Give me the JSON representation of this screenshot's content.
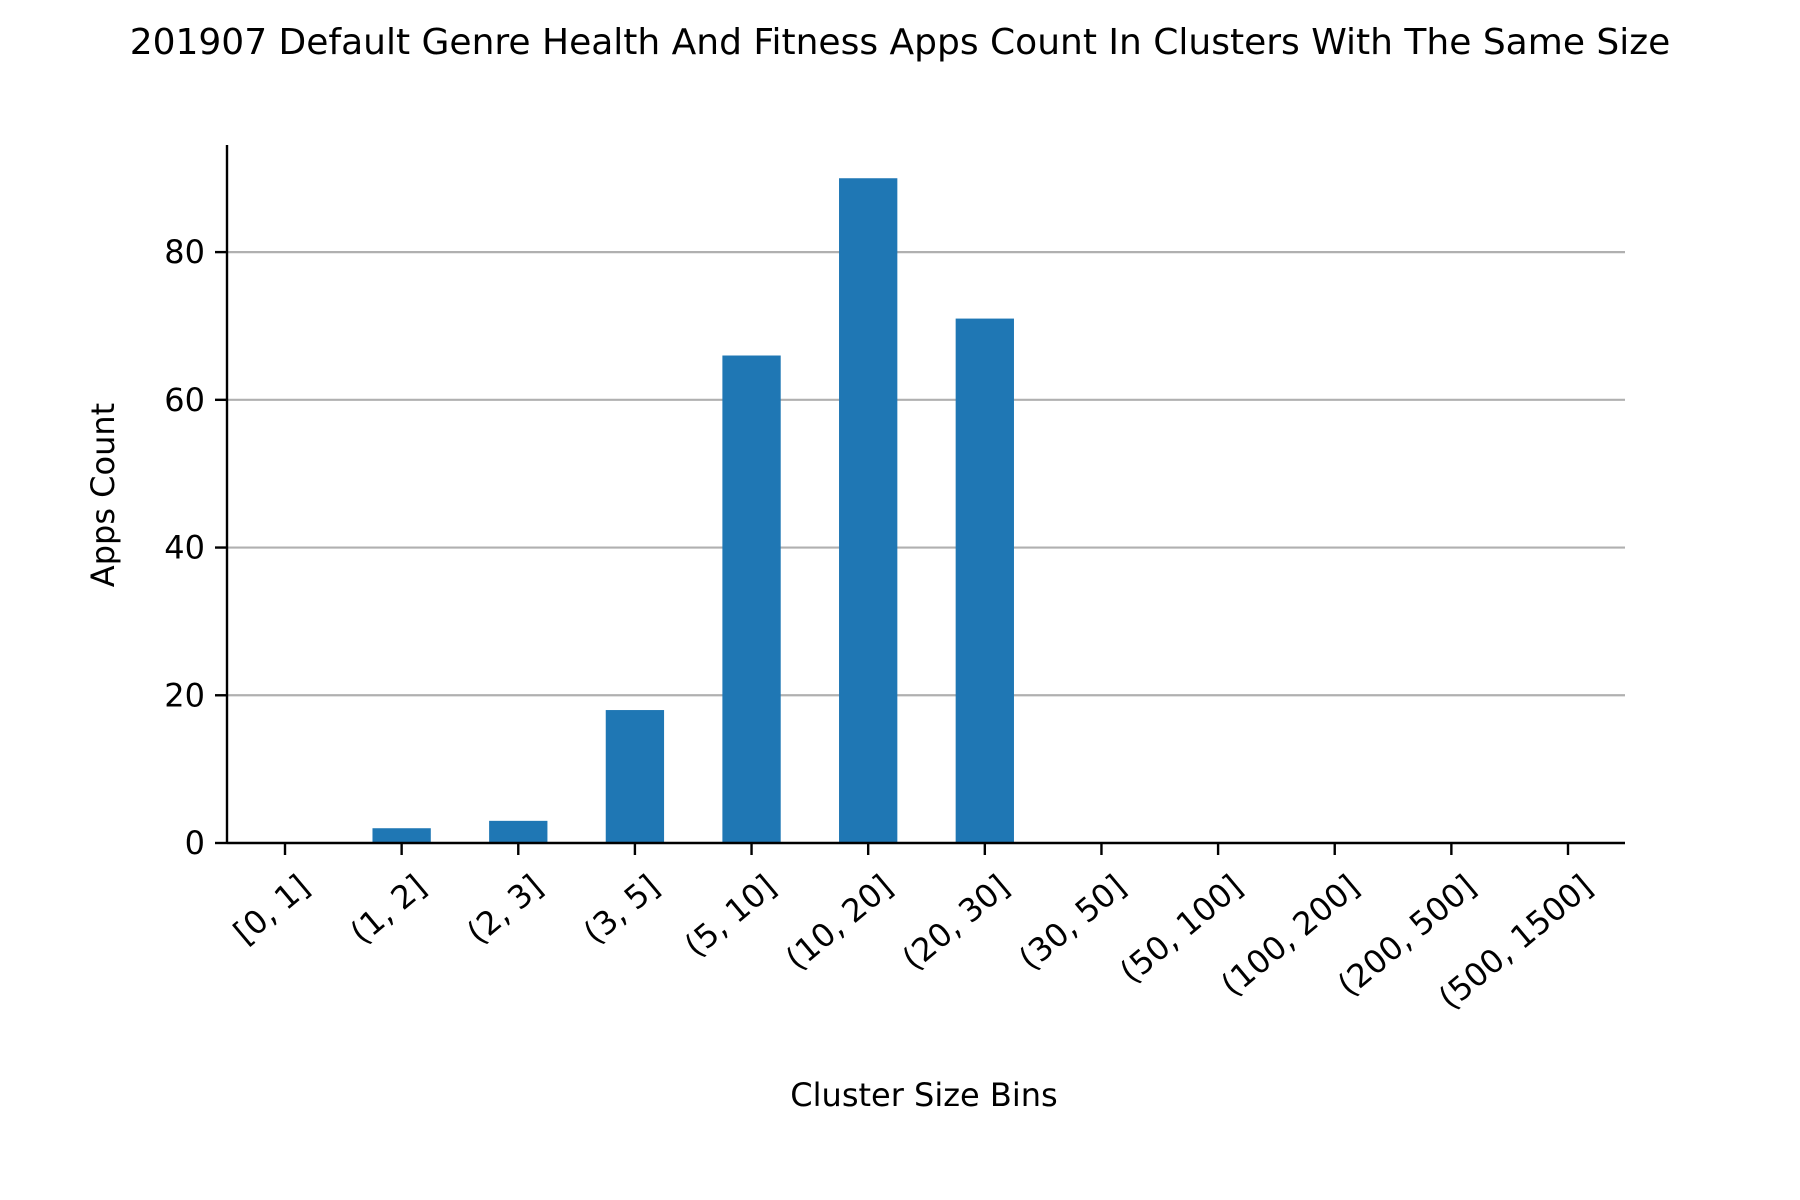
{
  "chart_data": {
    "type": "bar",
    "title": "201907 Default Genre Health And Fitness Apps Count In Clusters With The Same Size",
    "xlabel": "Cluster Size Bins",
    "ylabel": "Apps Count",
    "categories": [
      "[0, 1]",
      "(1, 2]",
      "(2, 3]",
      "(3, 5]",
      "(5, 10]",
      "(10, 20]",
      "(20, 30]",
      "(30, 50]",
      "(50, 100]",
      "(100, 200]",
      "(200, 500]",
      "(500, 1500]"
    ],
    "values": [
      0,
      2,
      3,
      18,
      66,
      90,
      71,
      0,
      0,
      0,
      0,
      0
    ],
    "ylim": [
      0,
      94.5
    ],
    "yticks": [
      0,
      20,
      40,
      60,
      80
    ],
    "grid": "horizontal",
    "legend": "none",
    "colors": {
      "bar": "#1f77b4",
      "grid": "#b0b0b0",
      "axis": "#000000"
    }
  }
}
